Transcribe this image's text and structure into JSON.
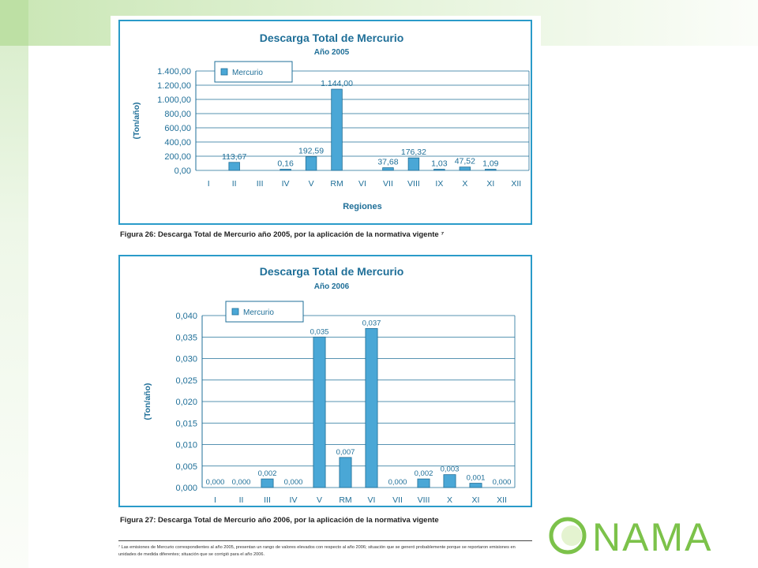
{
  "chart_data": [
    {
      "type": "bar",
      "title": "Descarga Total de Mercurio",
      "subtitle": "Año 2005",
      "xlabel": "Regiones",
      "ylabel": "(Ton/año)",
      "legend": "Mercurio",
      "legend_position": "top-left",
      "grid": true,
      "categories": [
        "I",
        "II",
        "III",
        "IV",
        "V",
        "RM",
        "VI",
        "VII",
        "VIII",
        "IX",
        "X",
        "XI",
        "XII"
      ],
      "values": [
        null,
        113.67,
        null,
        0.16,
        192.59,
        1144.0,
        null,
        37.68,
        176.32,
        1.03,
        47.52,
        1.09,
        null
      ],
      "value_labels": [
        "",
        "113,67",
        "",
        "0,16",
        "192,59",
        "1.144,00",
        "",
        "37,68",
        "176,32",
        "1,03",
        "47,52",
        "1,09",
        ""
      ],
      "ylim": [
        0,
        1400
      ],
      "yticks": [
        "0,00",
        "200,00",
        "400,00",
        "600,00",
        "800,00",
        "1.000,00",
        "1.200,00",
        "1.400,00"
      ],
      "color": "#4aa7d6"
    },
    {
      "type": "bar",
      "title": "Descarga Total de Mercurio",
      "subtitle": "Año 2006",
      "xlabel": "",
      "ylabel": "(Ton/año)",
      "legend": "Mercurio",
      "legend_position": "top-left",
      "grid": true,
      "categories": [
        "I",
        "II",
        "III",
        "IV",
        "V",
        "RM",
        "VI",
        "VII",
        "VIII",
        "X",
        "XI",
        "XII"
      ],
      "values": [
        0.0,
        0.0,
        0.002,
        0.0,
        0.035,
        0.007,
        0.037,
        0.0,
        0.002,
        0.003,
        0.001,
        0.0
      ],
      "value_labels": [
        "0,000",
        "0,000",
        "0,002",
        "0,000",
        "0,035",
        "0,007",
        "0,037",
        "0,000",
        "0,002",
        "0,003",
        "0,001",
        "0,000"
      ],
      "ylim": [
        0,
        0.04
      ],
      "yticks": [
        "0,000",
        "0,005",
        "0,010",
        "0,015",
        "0,020",
        "0,025",
        "0,030",
        "0,035",
        "0,040"
      ],
      "color": "#4aa7d6"
    }
  ],
  "captions": {
    "fig26": "Figura 26: Descarga Total de Mercurio año 2005, por la aplicación de la normativa vigente ⁷",
    "fig27": "Figura 27: Descarga Total de Mercurio año 2006, por la aplicación de la normativa vigente"
  },
  "footnote": "⁷ Las emisiones de Mercurio correspondientes al año 2005, presentan un rango de valores elevados con respecto al año 2006; situación que se generó probablemente porque se reportaron emisiones en unidades de medida diferentes; situación que se corrigió para el año 2006.",
  "logo": {
    "text": "NAMA",
    "full": "CONAMA",
    "color": "#7cc24a"
  },
  "colors": {
    "frame": "#2a9bc9",
    "title": "#1f6f98",
    "bar": "#4aa7d6",
    "bg_green": "#d6ecc8"
  }
}
